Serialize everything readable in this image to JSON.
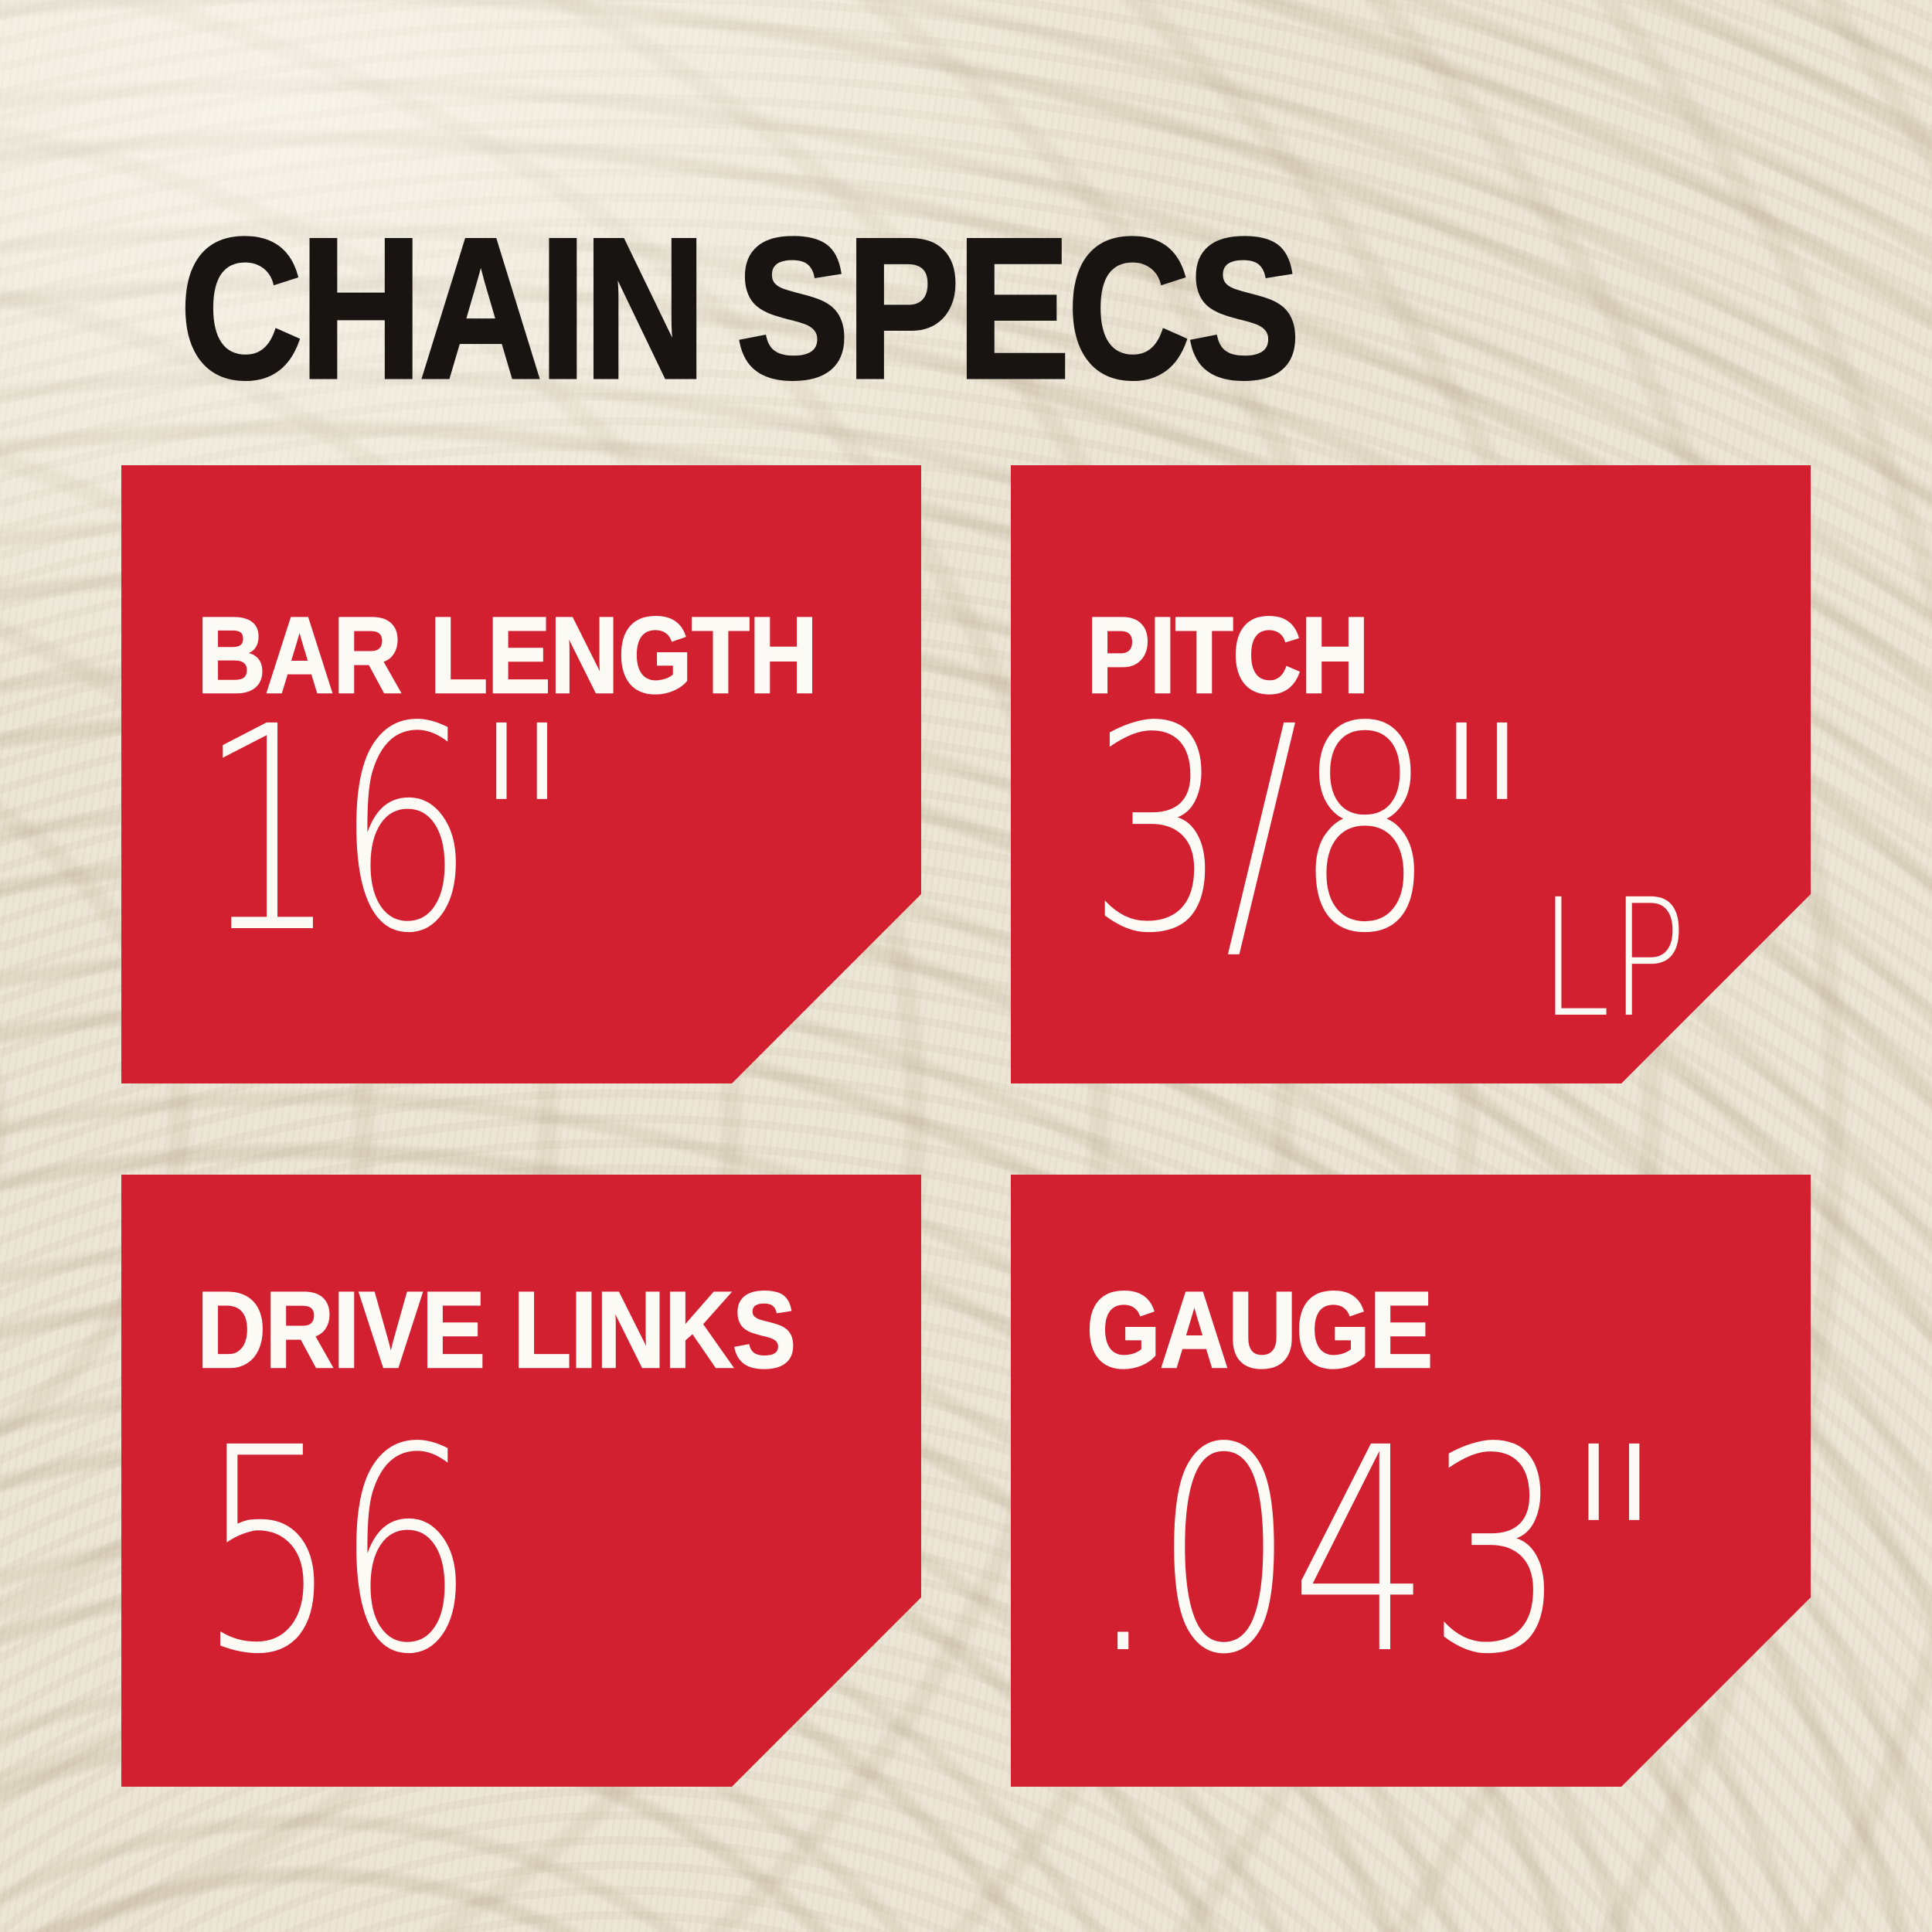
{
  "page": {
    "title": "CHAIN SPECS"
  },
  "colors": {
    "card_red": "#d22031",
    "text_white": "#fcfaf5",
    "title_black": "#181411",
    "background_cream": "#ece5d5"
  },
  "specs": [
    {
      "label": "BAR LENGTH",
      "value": "16\"",
      "suffix": ""
    },
    {
      "label": "PITCH",
      "value": "3/8\"",
      "suffix": "LP"
    },
    {
      "label": "DRIVE LINKS",
      "value": "56",
      "suffix": ""
    },
    {
      "label": "GAUGE",
      "value": ".043\"",
      "suffix": ""
    }
  ]
}
